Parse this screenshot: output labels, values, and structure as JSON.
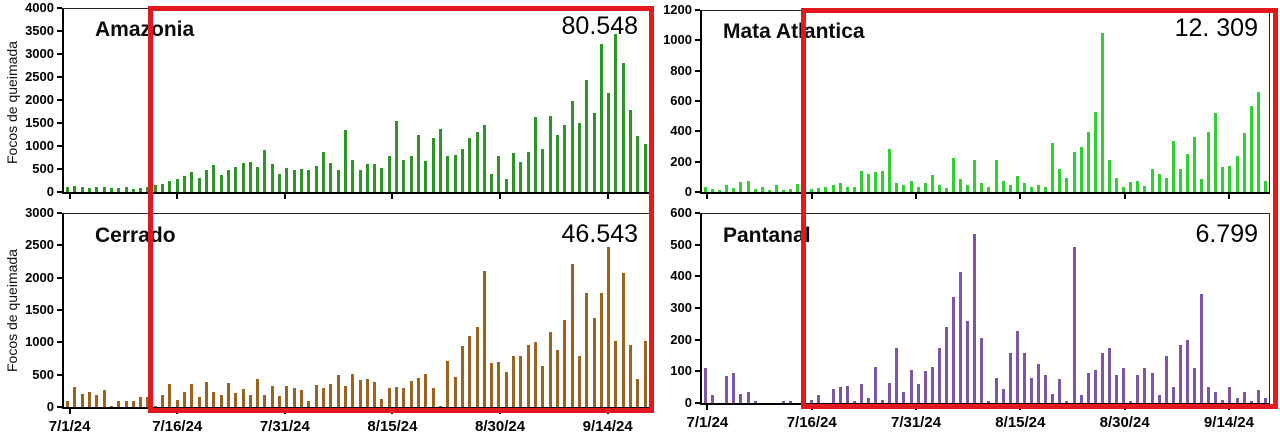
{
  "page": {
    "background": "#ffffff"
  },
  "y_axis_title": "Focos de queimada",
  "x_ticks": [
    "7/1/24",
    "7/16/24",
    "7/31/24",
    "8/15/24",
    "8/30/24",
    "9/14/24"
  ],
  "highlight": {
    "color": "#e2191f",
    "start_label": "7/16/24",
    "description": "red rectangle from 7/16/24 to the end of the series, spanning both charts of each column"
  },
  "chart_data": [
    {
      "type": "bar",
      "title": "Amazonia",
      "total_label": "80.548",
      "color": "#2e9428",
      "ylabel": "Focos de queimada",
      "xlabel": "",
      "x_start": "7/1/24",
      "x_unit": "day",
      "ylim": [
        0,
        4000
      ],
      "ystep": 500,
      "yticks": [
        "0",
        "500",
        "1000",
        "1500",
        "2000",
        "2500",
        "3000",
        "3500",
        "4000"
      ],
      "values": [
        100,
        130,
        110,
        90,
        120,
        100,
        80,
        95,
        110,
        75,
        85,
        120,
        150,
        180,
        230,
        280,
        350,
        440,
        300,
        480,
        600,
        380,
        470,
        550,
        640,
        660,
        540,
        920,
        620,
        400,
        530,
        480,
        510,
        470,
        560,
        870,
        640,
        470,
        1350,
        700,
        480,
        620,
        610,
        520,
        780,
        1550,
        700,
        790,
        1240,
        680,
        1190,
        1370,
        790,
        800,
        930,
        1180,
        1310,
        1470,
        400,
        780,
        280,
        860,
        650,
        880,
        1630,
        930,
        1660,
        1250,
        1460,
        1990,
        1510,
        2450,
        1730,
        3230,
        2170,
        3450,
        2810,
        1800,
        1230,
        1050
      ]
    },
    {
      "type": "bar",
      "title": "Mata Atlantica",
      "total_label": "12. 309",
      "color": "#2fd02f",
      "ylabel": "",
      "xlabel": "",
      "x_start": "7/1/24",
      "x_unit": "day",
      "ylim": [
        0,
        1200
      ],
      "ystep": 200,
      "yticks": [
        "0",
        "200",
        "400",
        "600",
        "800",
        "1000",
        "1200"
      ],
      "values": [
        30,
        20,
        15,
        45,
        25,
        65,
        70,
        20,
        35,
        15,
        45,
        10,
        20,
        55,
        15,
        20,
        25,
        30,
        45,
        60,
        35,
        30,
        140,
        120,
        130,
        140,
        285,
        60,
        45,
        75,
        35,
        60,
        110,
        45,
        25,
        225,
        85,
        45,
        215,
        60,
        30,
        210,
        75,
        45,
        105,
        60,
        30,
        45,
        35,
        325,
        155,
        90,
        265,
        300,
        400,
        530,
        1055,
        210,
        95,
        35,
        65,
        75,
        40,
        150,
        120,
        90,
        340,
        150,
        255,
        365,
        85,
        395,
        525,
        165,
        170,
        240,
        390,
        570,
        665,
        70
      ]
    },
    {
      "type": "bar",
      "title": "Cerrado",
      "total_label": "46.543",
      "color": "#9a6420",
      "ylabel": "Focos de queimada",
      "xlabel": "",
      "x_start": "7/1/24",
      "x_unit": "day",
      "ylim": [
        0,
        3000
      ],
      "ystep": 500,
      "yticks": [
        "0",
        "500",
        "1000",
        "1500",
        "2000",
        "2500",
        "3000"
      ],
      "values": [
        90,
        310,
        200,
        230,
        190,
        270,
        20,
        90,
        100,
        95,
        160,
        150,
        20,
        190,
        360,
        110,
        240,
        360,
        160,
        390,
        230,
        180,
        380,
        210,
        280,
        180,
        440,
        190,
        330,
        170,
        330,
        300,
        260,
        90,
        340,
        300,
        360,
        490,
        330,
        520,
        420,
        440,
        390,
        130,
        290,
        310,
        300,
        410,
        450,
        510,
        290,
        20,
        710,
        460,
        950,
        1110,
        1250,
        2110,
        690,
        700,
        540,
        800,
        790,
        960,
        1010,
        630,
        1170,
        890,
        1360,
        2230,
        800,
        1770,
        1380,
        1770,
        2480,
        1030,
        2080,
        960,
        430,
        1020
      ]
    },
    {
      "type": "bar",
      "title": "Pantanal",
      "total_label": "6.799",
      "color": "#7d55a6",
      "ylabel": "",
      "xlabel": "",
      "x_start": "7/1/24",
      "x_unit": "day",
      "ylim": [
        0,
        600
      ],
      "ystep": 100,
      "yticks": [
        "0",
        "100",
        "200",
        "300",
        "400",
        "500",
        "600"
      ],
      "values": [
        110,
        25,
        0,
        85,
        95,
        30,
        35,
        5,
        0,
        0,
        0,
        5,
        5,
        0,
        5,
        10,
        25,
        0,
        45,
        50,
        55,
        5,
        60,
        15,
        115,
        10,
        65,
        175,
        35,
        105,
        60,
        100,
        115,
        175,
        240,
        335,
        415,
        260,
        535,
        205,
        5,
        80,
        45,
        160,
        230,
        160,
        80,
        125,
        90,
        30,
        75,
        5,
        495,
        25,
        95,
        105,
        160,
        175,
        90,
        110,
        5,
        90,
        110,
        95,
        25,
        150,
        50,
        185,
        200,
        110,
        345,
        50,
        35,
        10,
        50,
        15,
        35,
        5,
        40,
        15
      ]
    }
  ]
}
